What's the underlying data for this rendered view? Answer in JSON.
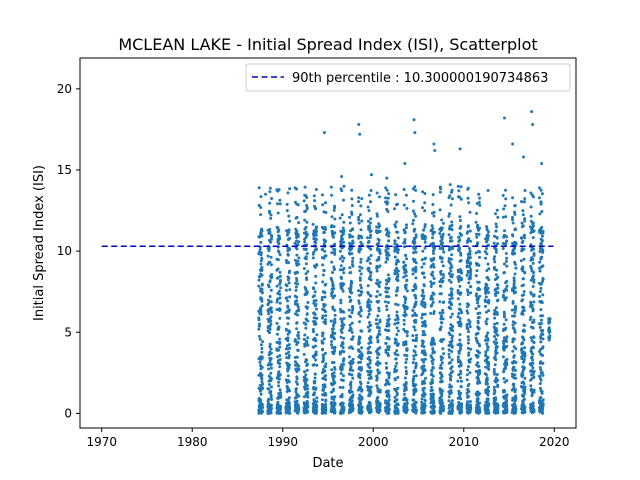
{
  "chart_data": {
    "type": "scatter",
    "title": "MCLEAN LAKE - Initial Spread Index (ISI), Scatterplot",
    "xlabel": "Date",
    "ylabel": "Initial Spread Index (ISI)",
    "xlim": [
      1967.6,
      2022.4
    ],
    "ylim": [
      -0.9,
      21.9
    ],
    "xticks": [
      1970,
      1980,
      1990,
      2000,
      2010,
      2020
    ],
    "yticks": [
      0,
      5,
      10,
      15,
      20
    ],
    "grid": false,
    "legend": {
      "placement": "top-right",
      "entries": [
        "90th percentile : 10.300000190734863"
      ]
    },
    "reference_line": {
      "y": 10.300000190734863,
      "x_start": 1970,
      "x_end": 2019.9,
      "style": "dashed",
      "color": "#0000cc"
    },
    "series": [
      {
        "color": "#1f77b4",
        "seasons": [
          1987,
          1988,
          1989,
          1990,
          1991,
          1992,
          1993,
          1994,
          1995,
          1996,
          1997,
          1998,
          1999,
          2000,
          2001,
          2002,
          2003,
          2004,
          2005,
          2006,
          2007,
          2008,
          2009,
          2010,
          2011,
          2012,
          2013,
          2014,
          2015,
          2016,
          2017,
          2018,
          2019
        ],
        "season_start": 0.35,
        "season_end": 0.78,
        "notable_points": [
          {
            "x": 1987.4,
            "y": 13.9
          },
          {
            "x": 1988.1,
            "y": 13.5
          },
          {
            "x": 1994.6,
            "y": 17.3
          },
          {
            "x": 1998.4,
            "y": 17.8
          },
          {
            "x": 1998.5,
            "y": 17.2
          },
          {
            "x": 1999.8,
            "y": 14.7
          },
          {
            "x": 2003.5,
            "y": 15.4
          },
          {
            "x": 2004.5,
            "y": 18.1
          },
          {
            "x": 2004.6,
            "y": 17.3
          },
          {
            "x": 2006.7,
            "y": 16.6
          },
          {
            "x": 2006.8,
            "y": 16.2
          },
          {
            "x": 2009.6,
            "y": 16.3
          },
          {
            "x": 2014.5,
            "y": 18.2
          },
          {
            "x": 2015.4,
            "y": 16.6
          },
          {
            "x": 2016.6,
            "y": 15.8
          },
          {
            "x": 2017.5,
            "y": 18.6
          },
          {
            "x": 2017.6,
            "y": 17.8
          },
          {
            "x": 2018.6,
            "y": 15.4
          },
          {
            "x": 1996.5,
            "y": 14.6
          },
          {
            "x": 2001.5,
            "y": 14.5
          },
          {
            "x": 2008.5,
            "y": 14.1
          }
        ]
      }
    ]
  },
  "colors": {
    "points": "#1f77b4",
    "percentile_line": "#0000cc",
    "axes": "#000000"
  }
}
